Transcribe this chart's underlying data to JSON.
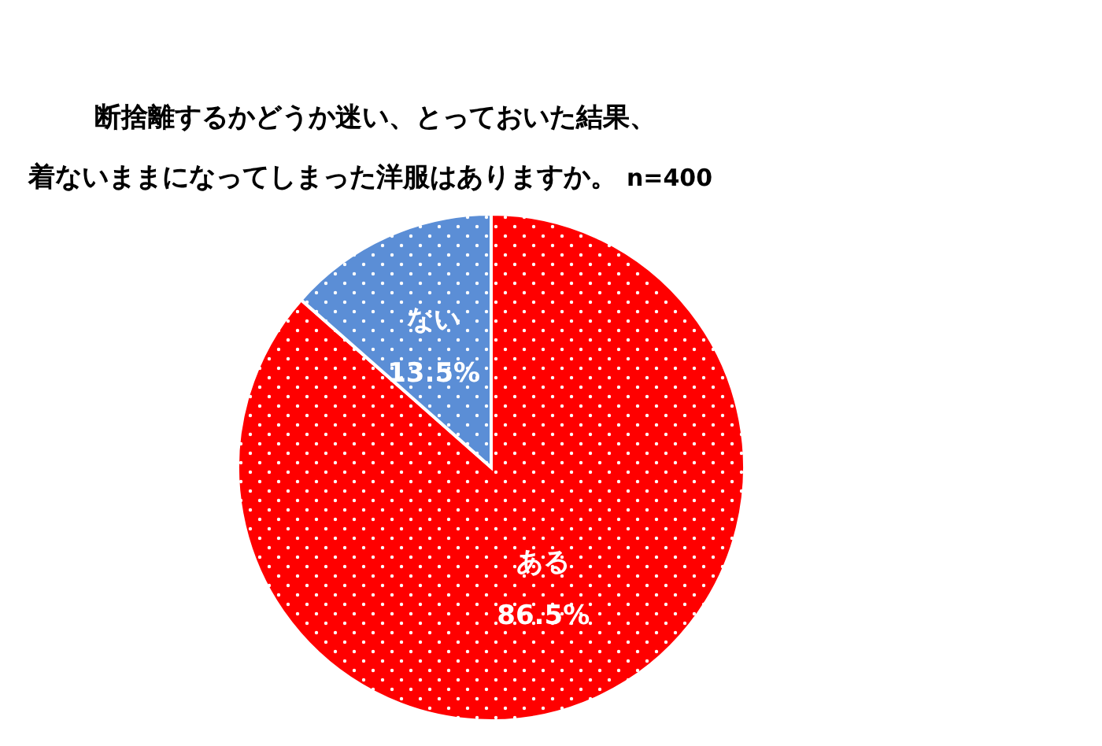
{
  "chart_data": {
    "type": "pie",
    "title": "断捨離するかどうか迷い、とっておいた結果、着ないままになってしまった洋服はありますか。",
    "annotations": [
      "n=400"
    ],
    "categories": [
      "ある",
      "ない"
    ],
    "values": [
      86.5,
      13.5
    ],
    "colors": [
      "#ff0000",
      "#5b8ed6"
    ],
    "value_labels": [
      "86.5%",
      "13.5%"
    ]
  }
}
